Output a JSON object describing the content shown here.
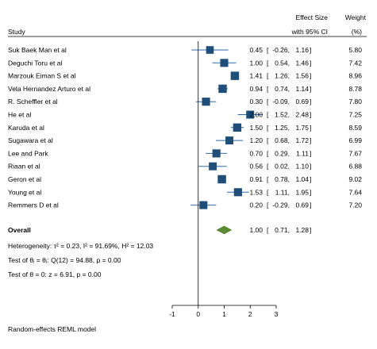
{
  "chart_data": {
    "type": "forest",
    "headers": {
      "study": "Study",
      "effect_line1": "Effect Size",
      "effect_line2": "with 95% CI",
      "weight_line1": "Weight",
      "weight_line2": "(%)"
    },
    "studies": [
      {
        "name": "Suk Baek Man et al",
        "es": 0.45,
        "lo": -0.26,
        "hi": 1.16,
        "weight": 5.8
      },
      {
        "name": "Deguchi Toru et al",
        "es": 1.0,
        "lo": 0.54,
        "hi": 1.46,
        "weight": 7.42
      },
      {
        "name": "Marzouk  Eiman S et al",
        "es": 1.41,
        "lo": 1.26,
        "hi": 1.56,
        "weight": 8.96
      },
      {
        "name": "Vela Hernandez Arturo et al",
        "es": 0.94,
        "lo": 0.74,
        "hi": 1.14,
        "weight": 8.78
      },
      {
        "name": "R. Scheffler et al",
        "es": 0.3,
        "lo": -0.09,
        "hi": 0.69,
        "weight": 7.8
      },
      {
        "name": "He et al",
        "es": 2.0,
        "lo": 1.52,
        "hi": 2.48,
        "weight": 7.25
      },
      {
        "name": "Karuda et al",
        "es": 1.5,
        "lo": 1.25,
        "hi": 1.75,
        "weight": 8.59
      },
      {
        "name": "Sugawara et al",
        "es": 1.2,
        "lo": 0.68,
        "hi": 1.72,
        "weight": 6.99
      },
      {
        "name": "Lee and Park",
        "es": 0.7,
        "lo": 0.29,
        "hi": 1.11,
        "weight": 7.67
      },
      {
        "name": "Riaan et al",
        "es": 0.56,
        "lo": 0.02,
        "hi": 1.1,
        "weight": 6.88
      },
      {
        "name": "Geron et al",
        "es": 0.91,
        "lo": 0.78,
        "hi": 1.04,
        "weight": 9.02
      },
      {
        "name": "Young et al",
        "es": 1.53,
        "lo": 1.11,
        "hi": 1.95,
        "weight": 7.64
      },
      {
        "name": "Remmers D et al",
        "es": 0.2,
        "lo": -0.29,
        "hi": 0.69,
        "weight": 7.2
      }
    ],
    "overall": {
      "label": "Overall",
      "es": 1.0,
      "lo": 0.71,
      "hi": 1.28
    },
    "stats": [
      "Heterogeneity: τ² = 0.23, I² = 91.69%, H² = 12.03",
      "Test of θᵢ = θⱼ: Q(12) = 94.88, p = 0.00",
      "Test of θ = 0: z = 6.91, p = 0.00"
    ],
    "x_ticks": [
      -1,
      0,
      1,
      2,
      3
    ],
    "xlim": [
      -1,
      3
    ],
    "null_line": 0,
    "footer": "Random-effects REML model",
    "colors": {
      "marker": "#1f4e79",
      "ci_line": "#2f6aa8",
      "diamond": "#5b8c32",
      "axis": "#000000"
    }
  }
}
